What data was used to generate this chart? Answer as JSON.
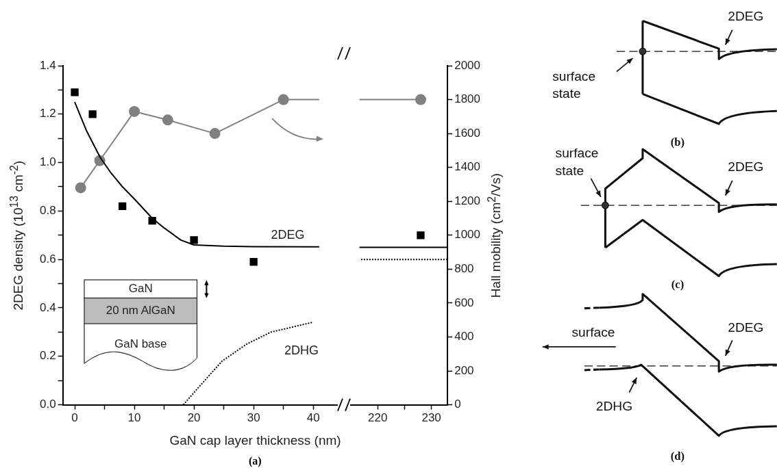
{
  "chart_data": [
    {
      "type": "line",
      "xlabel": "GaN cap layer thickness (nm)",
      "ylabel": "2DEG density (10$^{13}$ cm$^{-2}$)",
      "xlim": [
        -2,
        44
      ],
      "ylim": [
        0,
        1.4
      ],
      "y2lim": [
        0,
        2000
      ],
      "xticks": [
        0,
        {
          "value": 5,
          "label": null
        },
        10,
        {
          "value": 15,
          "label": null
        },
        20,
        {
          "value": 25,
          "label": null
        },
        30,
        {
          "value": 35,
          "label": null
        },
        40
      ],
      "yticks": [
        {
          "value": 0,
          "label": "0.0"
        },
        {
          "value": 0.1,
          "label": null
        },
        {
          "value": 0.2,
          "label": "0.2"
        },
        {
          "value": 0.3,
          "label": null
        },
        {
          "value": 0.4,
          "label": "0.4"
        },
        {
          "value": 0.5,
          "label": null
        },
        {
          "value": 0.6,
          "label": "0.6"
        },
        {
          "value": 0.7,
          "label": null
        },
        {
          "value": 0.8,
          "label": "0.8"
        },
        {
          "value": 0.9,
          "label": null
        },
        {
          "value": 1,
          "label": "1.0"
        },
        {
          "value": 1.1,
          "label": null
        },
        {
          "value": 1.2,
          "label": "1.2"
        },
        {
          "value": 1.3,
          "label": null
        },
        {
          "value": 1.4,
          "label": "1.4"
        }
      ],
      "series": [
        {
          "type": "scatter",
          "marker": "square",
          "color": "#000000",
          "x": [
            0,
            3,
            8,
            13,
            20,
            30
          ],
          "values": [
            1.29,
            1.2,
            0.82,
            0.76,
            0.68,
            0.59
          ]
        },
        {
          "type": "line",
          "marker": "none",
          "color": "#000000",
          "x": [
            0,
            2,
            4.3,
            6,
            8,
            10,
            13,
            15,
            17.8,
            20,
            25,
            30,
            41
          ],
          "values": [
            1.25,
            1.13,
            1.02,
            0.96,
            0.9,
            0.85,
            0.77,
            0.73,
            0.68,
            0.66,
            0.655,
            0.653,
            0.652
          ]
        },
        {
          "type": "line",
          "marker": "none",
          "line_style": "dotted",
          "color": "#000000",
          "x": [
            18.2,
            20.7,
            24.7,
            28.8,
            32.9,
            39.8
          ],
          "values": [
            0,
            0.07,
            0.18,
            0.25,
            0.3,
            0.34
          ]
        },
        {
          "type": "line",
          "marker": "circle",
          "axis": "y2",
          "color": "#808080",
          "x": [
            1,
            4.2,
            10,
            15.6,
            23.5,
            35
          ],
          "values": [
            1280,
            1440,
            1730,
            1680,
            1600,
            1800
          ]
        },
        {
          "type": "line",
          "marker": "none",
          "axis": "y2",
          "color": "#808080",
          "x": [
            35,
            41
          ],
          "values": [
            1800,
            1800
          ]
        }
      ],
      "annotations": [
        "2DEG",
        "2DHG",
        "GaN",
        "20 nm AlGaN",
        "GaN base",
        "(a)"
      ]
    },
    {
      "type": "line",
      "y2label": "Hall mobility (cm$^{2}$/Vs)",
      "xlim": [
        215,
        233
      ],
      "ylim": [
        0,
        1.4
      ],
      "y2lim": [
        0,
        2000
      ],
      "xticks": [
        220,
        {
          "value": 225,
          "label": null
        },
        230
      ],
      "y2ticks": [
        0,
        200,
        400,
        600,
        800,
        1000,
        1200,
        1400,
        1600,
        1800,
        2000
      ],
      "series": [
        {
          "type": "scatter",
          "marker": "square",
          "color": "#000000",
          "x": [
            228
          ],
          "values": [
            0.7
          ]
        },
        {
          "type": "line",
          "marker": "none",
          "color": "#000000",
          "x": [
            216.6,
            233
          ],
          "values": [
            0.65,
            0.65
          ]
        },
        {
          "type": "line",
          "marker": "none",
          "line_style": "dotted",
          "color": "#000000",
          "x": [
            216.9,
            233
          ],
          "values": [
            0.6,
            0.6
          ]
        },
        {
          "type": "line",
          "marker": "none",
          "axis": "y2",
          "color": "#808080",
          "x": [
            216.6,
            228
          ],
          "values": [
            1800,
            1800
          ]
        },
        {
          "type": "scatter",
          "marker": "circle",
          "axis": "y2",
          "color": "#808080",
          "x": [
            228
          ],
          "values": [
            1800
          ]
        }
      ]
    },
    {
      "type": "other",
      "annotations": [
        "2DEG",
        "surface state",
        "(b)",
        "surface state",
        "2DEG",
        "(c)",
        "surface",
        "2DEG",
        "2DHG",
        "(d)"
      ]
    }
  ]
}
